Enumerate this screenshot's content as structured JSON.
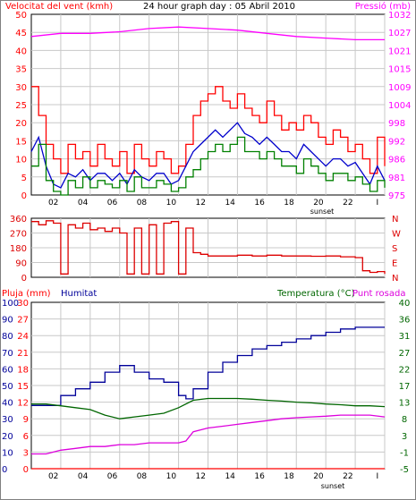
{
  "colors": {
    "wind": "#ff0000",
    "pressure": "#ff00ff",
    "gust_avg": "#0000cc",
    "gust_low": "#008000",
    "direction": "#dd0000",
    "rain": "#ff0000",
    "humidity": "#000099",
    "temperature": "#006600",
    "dewpoint": "#dd00dd",
    "grid": "#c8c8c8",
    "axis": "#000000"
  },
  "header": {
    "left_label": "Velocitat del vent (kmh)",
    "title": "24 hour graph day : 05 Abril 2010",
    "right_label": "Pressió (mb)"
  },
  "footer_bottom_labels": {
    "rain": "Pluja (mm)",
    "humidity": "Humitat",
    "temp": "Temperatura (°C)",
    "dew": "Punt rosada"
  },
  "sunset_label": "sunset",
  "x_ticks": [
    "02",
    "04",
    "06",
    "08",
    "10",
    "12",
    "14",
    "16",
    "18",
    "20",
    "22",
    "I"
  ],
  "chart_data": [
    {
      "type": "line",
      "panel": "wind_pressure",
      "y_left_ticks": [
        "0",
        "5",
        "10",
        "15",
        "20",
        "25",
        "30",
        "35",
        "40",
        "45",
        "50"
      ],
      "y_right_ticks": [
        "975",
        "981",
        "986",
        "992",
        "998",
        "1004",
        "1009",
        "1015",
        "1021",
        "1027",
        "1032"
      ],
      "ylim_left": [
        0,
        50
      ],
      "ylim_right": [
        975,
        1032
      ],
      "xlim": [
        0,
        24
      ],
      "series": [
        {
          "name": "Pressió (mb)",
          "axis": "right",
          "x": [
            0,
            2,
            4,
            6,
            8,
            10,
            12,
            14,
            16,
            18,
            20,
            22,
            24
          ],
          "values": [
            1025,
            1026,
            1026,
            1026.5,
            1027.5,
            1028,
            1027.5,
            1027,
            1026,
            1025,
            1024.5,
            1024,
            1024
          ]
        },
        {
          "axis": "left",
          "x": [
            0,
            0.5,
            1,
            1.5,
            2,
            2.5,
            3,
            3.5,
            4,
            4.5,
            5,
            5.5,
            6,
            6.5,
            7,
            7.5,
            8,
            8.5,
            9,
            9.5,
            10,
            10.5,
            11,
            11.5,
            12,
            12.5,
            13,
            13.5,
            14,
            14.5,
            15,
            15.5,
            16,
            16.5,
            17,
            17.5,
            18,
            18.5,
            19,
            19.5,
            20,
            20.5,
            21,
            21.5,
            22,
            22.5,
            23,
            23.5,
            24
          ],
          "values": [
            30,
            22,
            14,
            10,
            6,
            14,
            10,
            12,
            8,
            14,
            10,
            8,
            12,
            6,
            14,
            10,
            8,
            12,
            10,
            6,
            8,
            14,
            22,
            26,
            28,
            30,
            26,
            24,
            28,
            24,
            22,
            20,
            26,
            22,
            18,
            20,
            18,
            22,
            20,
            16,
            14,
            18,
            16,
            12,
            14,
            10,
            6,
            16,
            8
          ]
        },
        {
          "axis": "left",
          "x": [
            0,
            0.5,
            1,
            1.5,
            2,
            2.5,
            3,
            3.5,
            4,
            4.5,
            5,
            5.5,
            6,
            6.5,
            7,
            7.5,
            8,
            8.5,
            9,
            9.5,
            10,
            10.5,
            11,
            11.5,
            12,
            12.5,
            13,
            13.5,
            14,
            14.5,
            15,
            15.5,
            16,
            16.5,
            17,
            17.5,
            18,
            18.5,
            19,
            19.5,
            20,
            20.5,
            21,
            21.5,
            22,
            22.5,
            23,
            23.5,
            24
          ],
          "values": [
            12,
            16,
            8,
            3,
            2,
            6,
            5,
            7,
            4,
            6,
            6,
            4,
            6,
            3,
            7,
            5,
            4,
            6,
            6,
            3,
            4,
            8,
            12,
            14,
            16,
            18,
            16,
            18,
            20,
            17,
            16,
            14,
            16,
            14,
            12,
            12,
            10,
            14,
            12,
            10,
            8,
            10,
            10,
            8,
            9,
            6,
            3,
            8,
            4
          ]
        },
        {
          "axis": "left",
          "x": [
            0,
            0.5,
            1,
            1.5,
            2,
            2.5,
            3,
            3.5,
            4,
            4.5,
            5,
            5.5,
            6,
            6.5,
            7,
            7.5,
            8,
            8.5,
            9,
            9.5,
            10,
            10.5,
            11,
            11.5,
            12,
            12.5,
            13,
            13.5,
            14,
            14.5,
            15,
            15.5,
            16,
            16.5,
            17,
            17.5,
            18,
            18.5,
            19,
            19.5,
            20,
            20.5,
            21,
            21.5,
            22,
            22.5,
            23,
            23.5,
            24
          ],
          "values": [
            8,
            14,
            4,
            1,
            0,
            4,
            2,
            5,
            2,
            4,
            3,
            2,
            4,
            1,
            5,
            2,
            2,
            4,
            3,
            1,
            2,
            5,
            7,
            10,
            12,
            14,
            12,
            14,
            16,
            12,
            12,
            10,
            12,
            10,
            8,
            8,
            6,
            10,
            8,
            6,
            4,
            6,
            6,
            4,
            5,
            3,
            1,
            4,
            2
          ]
        }
      ]
    },
    {
      "type": "scatter",
      "panel": "wind_direction",
      "y_left_ticks": [
        "0",
        "90",
        "180",
        "270",
        "360"
      ],
      "y_right_ticks": [
        "N",
        "E",
        "S",
        "W",
        "N"
      ],
      "ylim": [
        0,
        360
      ],
      "xlim": [
        0,
        24
      ],
      "series": [
        {
          "x": [
            0,
            0.5,
            1,
            1.5,
            2,
            2.5,
            3,
            3.5,
            4,
            4.5,
            5,
            5.5,
            6,
            6.5,
            7,
            7.5,
            8,
            8.5,
            9,
            9.5,
            10,
            10.5,
            11,
            11.5,
            12,
            13,
            14,
            15,
            16,
            17,
            18,
            19,
            20,
            21,
            22,
            22.5,
            23,
            23.5,
            24
          ],
          "values": [
            340,
            320,
            345,
            330,
            20,
            320,
            300,
            330,
            290,
            300,
            280,
            300,
            270,
            20,
            300,
            20,
            320,
            20,
            330,
            340,
            20,
            300,
            150,
            140,
            130,
            130,
            135,
            130,
            135,
            130,
            130,
            128,
            130,
            125,
            120,
            40,
            30,
            35,
            20
          ]
        }
      ]
    },
    {
      "type": "line",
      "panel": "rain_humidity_temp",
      "y_left_outer_ticks": [
        "0",
        "10",
        "20",
        "30",
        "40",
        "50",
        "60",
        "70",
        "80",
        "90",
        "100"
      ],
      "y_left_inner_ticks": [
        "0",
        "3",
        "6",
        "9",
        "12",
        "15",
        "18",
        "21",
        "24",
        "27",
        "30"
      ],
      "y_right_ticks": [
        "-5",
        "-1",
        "3",
        "8",
        "13",
        "17",
        "22",
        "27",
        "31",
        "36",
        "40"
      ],
      "xlim": [
        0,
        24
      ],
      "series": [
        {
          "name": "Humitat",
          "axis": "humidity",
          "x": [
            0,
            1,
            2,
            3,
            4,
            5,
            6,
            7,
            8,
            9,
            10,
            10.5,
            11,
            12,
            13,
            14,
            15,
            16,
            17,
            18,
            19,
            20,
            21,
            22,
            23,
            24
          ],
          "values": [
            38,
            38,
            44,
            48,
            52,
            58,
            62,
            58,
            54,
            52,
            44,
            42,
            48,
            58,
            64,
            68,
            72,
            74,
            76,
            78,
            80,
            82,
            84,
            85,
            85,
            85
          ]
        },
        {
          "name": "Temperatura (°C)",
          "axis": "temp",
          "x": [
            0,
            1,
            2,
            3,
            4,
            5,
            6,
            7,
            8,
            9,
            10,
            11,
            12,
            13,
            14,
            15,
            16,
            17,
            18,
            19,
            20,
            21,
            22,
            23,
            24
          ],
          "values": [
            12.5,
            12.5,
            12,
            11.5,
            11,
            9.5,
            8.5,
            9,
            9.5,
            10,
            11.5,
            13.5,
            14,
            14,
            14,
            13.8,
            13.5,
            13.3,
            13,
            12.8,
            12.5,
            12.3,
            12,
            12,
            11.8
          ]
        },
        {
          "name": "Punt rosada",
          "axis": "temp",
          "x": [
            0,
            1,
            2,
            3,
            4,
            5,
            6,
            7,
            8,
            9,
            10,
            10.5,
            11,
            12,
            13,
            14,
            15,
            16,
            17,
            18,
            19,
            20,
            21,
            22,
            23,
            24
          ],
          "values": [
            -1,
            -1,
            0,
            0.5,
            1,
            1,
            1.5,
            1.5,
            2,
            2,
            2,
            2.5,
            5,
            6,
            6.5,
            7,
            7.5,
            8,
            8.5,
            8.8,
            9,
            9.2,
            9.5,
            9.5,
            9.5,
            9
          ]
        },
        {
          "name": "Pluja (mm)",
          "axis": "rain",
          "x": [
            0,
            24
          ],
          "values": [
            0,
            0
          ]
        }
      ]
    }
  ]
}
